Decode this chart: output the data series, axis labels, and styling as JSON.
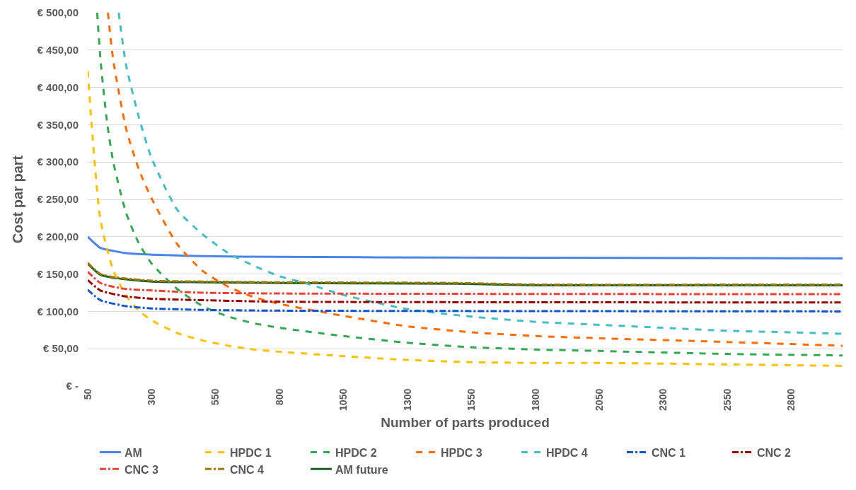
{
  "chart_data": {
    "type": "line",
    "xlabel": "Number of parts produced",
    "ylabel": "Cost par part",
    "xlim": [
      50,
      3000
    ],
    "xticks": [
      50,
      300,
      550,
      800,
      1050,
      1300,
      1550,
      1800,
      2050,
      2300,
      2550,
      2800
    ],
    "ylim": [
      0,
      500
    ],
    "yticks": [
      {
        "value": 0,
        "label": "€ -"
      },
      {
        "value": 50,
        "label": "€ 50,00"
      },
      {
        "value": 100,
        "label": "€ 100,00"
      },
      {
        "value": 150,
        "label": "€ 150,00"
      },
      {
        "value": 200,
        "label": "€ 200,00"
      },
      {
        "value": 250,
        "label": "€ 250,00"
      },
      {
        "value": 300,
        "label": "€ 300,00"
      },
      {
        "value": 350,
        "label": "€ 350,00"
      },
      {
        "value": 400,
        "label": "€ 400,00"
      },
      {
        "value": 450,
        "label": "€ 450,00"
      },
      {
        "value": 500,
        "label": "€ 500,00"
      }
    ],
    "grid": "y",
    "legend": "bottom",
    "marker": "none",
    "series": [
      {
        "name": "AM",
        "color": "#4a86e8",
        "line_style": "solid",
        "x": [
          50,
          100,
          150,
          200,
          300,
          500,
          800,
          1500,
          3000
        ],
        "values": [
          200,
          185,
          181,
          178,
          176,
          174,
          173,
          172,
          171
        ]
      },
      {
        "name": "HPDC 1",
        "color": "#ffc000",
        "line_style": "dashed",
        "x": [
          50,
          100,
          150,
          200,
          250,
          300,
          400,
          500,
          600,
          700,
          800,
          1050,
          1300,
          1550,
          1800,
          2050,
          2550,
          3000
        ],
        "values": [
          422,
          222,
          155,
          121,
          101,
          88,
          71,
          61,
          54,
          49,
          46,
          40,
          35,
          32,
          31,
          31,
          29,
          27
        ]
      },
      {
        "name": "HPDC 2",
        "color": "#34a853",
        "line_style": "dashed",
        "x": [
          87,
          100,
          125,
          150,
          200,
          250,
          300,
          400,
          500,
          600,
          700,
          800,
          1050,
          1300,
          1550,
          1800,
          2050,
          2550,
          3000
        ],
        "values": [
          500,
          437,
          355,
          300,
          232,
          191,
          164,
          130,
          107,
          93,
          84,
          78,
          67,
          58,
          52,
          49,
          47,
          43,
          41
        ]
      },
      {
        "name": "HPDC 3",
        "color": "#ff6d01",
        "line_style": "dashed",
        "x": [
          129,
          150,
          200,
          250,
          300,
          400,
          500,
          600,
          700,
          800,
          1050,
          1300,
          1550,
          1800,
          2050,
          2550,
          3000
        ],
        "values": [
          500,
          436,
          345,
          290,
          251,
          190,
          154,
          133,
          119,
          110,
          94,
          80,
          72,
          67,
          64,
          59,
          54
        ]
      },
      {
        "name": "HPDC 4",
        "color": "#46bdc6",
        "line_style": "dashed",
        "x": [
          171,
          200,
          250,
          300,
          400,
          500,
          600,
          700,
          800,
          900,
          1050,
          1300,
          1550,
          1800,
          2050,
          2300,
          2550,
          2800,
          3000
        ],
        "values": [
          500,
          430,
          360,
          305,
          236,
          203,
          178,
          161,
          147,
          138,
          122,
          103,
          93,
          86,
          82,
          78,
          74,
          72,
          70
        ]
      },
      {
        "name": "CNC 1",
        "color": "#1155cc",
        "line_style": "dashdot",
        "x": [
          50,
          100,
          200,
          300,
          500,
          800,
          3000
        ],
        "values": [
          129,
          115,
          107,
          104,
          102,
          101,
          100
        ]
      },
      {
        "name": "CNC 2",
        "color": "#990000",
        "line_style": "dashdot",
        "x": [
          50,
          100,
          200,
          300,
          500,
          800,
          3000
        ],
        "values": [
          142,
          128,
          120,
          117,
          115,
          113,
          112
        ]
      },
      {
        "name": "CNC 3",
        "color": "#ea4335",
        "line_style": "dashdot",
        "x": [
          50,
          100,
          150,
          200,
          300,
          500,
          800,
          3000
        ],
        "values": [
          153,
          138,
          133,
          130,
          128,
          125,
          124,
          123
        ]
      },
      {
        "name": "CNC 4",
        "color": "#9c7a00",
        "line_style": "dashdot",
        "x": [
          50,
          100,
          150,
          200,
          300,
          500,
          800,
          1500,
          1800,
          3000
        ],
        "values": [
          165,
          150,
          146,
          144,
          141,
          140,
          139,
          138,
          136,
          136
        ]
      },
      {
        "name": "AM future",
        "color": "#1c5e26",
        "line_style": "solid",
        "x": [
          50,
          100,
          150,
          200,
          300,
          500,
          800,
          1500,
          1800,
          3000
        ],
        "values": [
          164,
          149,
          145,
          143,
          140,
          139,
          138,
          137,
          135,
          135
        ]
      }
    ]
  }
}
